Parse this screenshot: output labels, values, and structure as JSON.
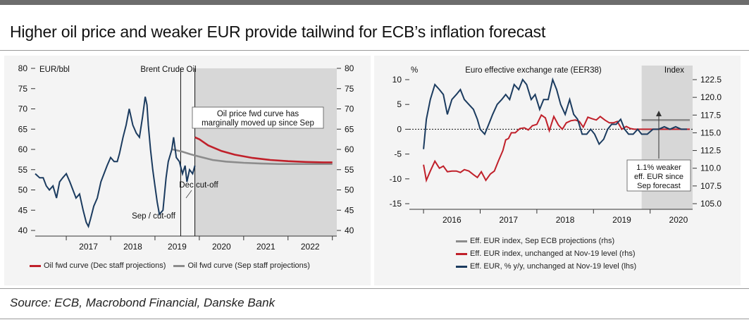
{
  "title": "Higher oil price and weaker EUR provide tailwind for ECB’s inflation forecast",
  "source": "Source: ECB, Macrobond Financial, Danske Bank",
  "colors": {
    "navy": "#1b3b5f",
    "red": "#c0202a",
    "gray": "#8c8c8c",
    "shade": "#d7d7d7"
  },
  "chart_data": [
    {
      "type": "line",
      "title": "Brent Crude Oil",
      "ylabel": "EUR/bbl",
      "ylim": [
        40,
        80
      ],
      "yticks": [
        "40",
        "45",
        "50",
        "55",
        "60",
        "65",
        "70",
        "75",
        "80"
      ],
      "xlim": [
        2016.3,
        2023.1
      ],
      "years": [
        "2017",
        "2018",
        "2019",
        "2020",
        "2021",
        "2022"
      ],
      "shaded_from": 2019.9,
      "annotations": {
        "sep": "Sep / cut-off",
        "dec": "Dec cut-off",
        "box_line1": "Oil price fwd curve has",
        "box_line2": "marginally moved up since Sep"
      },
      "series": [
        {
          "name": "Brent Crude Oil (EUR/bbl)",
          "x": [
            2016.3,
            2016.4,
            2016.48,
            2016.55,
            2016.62,
            2016.7,
            2016.78,
            2016.85,
            2016.92,
            2017.0,
            2017.08,
            2017.15,
            2017.22,
            2017.3,
            2017.38,
            2017.45,
            2017.5,
            2017.55,
            2017.62,
            2017.7,
            2017.78,
            2017.85,
            2017.92,
            2018.0,
            2018.08,
            2018.15,
            2018.2,
            2018.28,
            2018.35,
            2018.42,
            2018.5,
            2018.58,
            2018.65,
            2018.72,
            2018.78,
            2018.82,
            2018.85,
            2018.9,
            2018.95,
            2019.0,
            2019.05,
            2019.1,
            2019.18,
            2019.25,
            2019.3,
            2019.38,
            2019.42,
            2019.48,
            2019.55,
            2019.62,
            2019.68,
            2019.72,
            2019.78,
            2019.85,
            2019.9
          ],
          "values": [
            54,
            53,
            53,
            51,
            50,
            51,
            48,
            52,
            53,
            54,
            52,
            50,
            48,
            49,
            45,
            42,
            41,
            43,
            46,
            48,
            52,
            54,
            56,
            58,
            57,
            57,
            59,
            63,
            66,
            70,
            66,
            64,
            63,
            68,
            73,
            71,
            66,
            60,
            55,
            51,
            47,
            44,
            45,
            53,
            57,
            60,
            63,
            58,
            57,
            54,
            56,
            52,
            55,
            54,
            56
          ]
        },
        {
          "name": "Oil fwd curve (Dec staff projections)",
          "x": [
            2019.9,
            2020.0,
            2020.2,
            2020.5,
            2020.8,
            2021.2,
            2021.6,
            2022.0,
            2022.4,
            2022.8,
            2023.0
          ],
          "values": [
            63,
            62.5,
            61,
            59.6,
            58.7,
            57.9,
            57.4,
            57.1,
            56.9,
            56.8,
            56.8
          ]
        },
        {
          "name": "Oil fwd curve (Sep staff projections)",
          "x": [
            2019.4,
            2019.6,
            2019.8,
            2020.0,
            2020.3,
            2020.6,
            2021.0,
            2021.4,
            2021.8,
            2022.2,
            2022.6,
            2023.0
          ],
          "values": [
            60,
            59.5,
            58.8,
            58.2,
            57.4,
            57,
            56.7,
            56.5,
            56.4,
            56.4,
            56.4,
            56.4
          ]
        }
      ],
      "legend": [
        "Oil fwd curve (Dec staff projections)",
        "Oil fwd curve (Sep staff projections)"
      ]
    },
    {
      "type": "line",
      "title": "Euro effective exchange rate (EER38)",
      "ylabel_left": "%",
      "ylabel_right": "Index",
      "ylim_left": [
        -15,
        10
      ],
      "ylim_right": [
        105,
        122.5
      ],
      "yticks_left": [
        "-15",
        "-10",
        "-5",
        "0",
        "5",
        "10"
      ],
      "yticks_right": [
        "105.0",
        "107.5",
        "110.0",
        "112.5",
        "115.0",
        "117.5",
        "120.0",
        "122.5"
      ],
      "xlim": [
        2015.75,
        2020.75
      ],
      "years": [
        "2016",
        "2017",
        "2018",
        "2019",
        "2020"
      ],
      "shaded_from": 2019.85,
      "annotations": {
        "box_line1": "1.1% weaker",
        "box_line2": "eff. EUR since",
        "box_line3": "Sep forecast"
      },
      "series": [
        {
          "name": "Eff. EUR, % y/y, unchanged at Nov-19 level (lhs)",
          "axis": "left",
          "x": [
            2016.0,
            2016.05,
            2016.12,
            2016.2,
            2016.28,
            2016.35,
            2016.42,
            2016.5,
            2016.58,
            2016.65,
            2016.72,
            2016.8,
            2016.88,
            2016.95,
            2017.0,
            2017.08,
            2017.15,
            2017.22,
            2017.3,
            2017.38,
            2017.45,
            2017.52,
            2017.6,
            2017.68,
            2017.75,
            2017.82,
            2017.9,
            2017.97,
            2018.05,
            2018.12,
            2018.2,
            2018.28,
            2018.35,
            2018.42,
            2018.5,
            2018.58,
            2018.65,
            2018.72,
            2018.8,
            2018.88,
            2018.95,
            2019.02,
            2019.1,
            2019.18,
            2019.25,
            2019.32,
            2019.4,
            2019.48,
            2019.55,
            2019.62,
            2019.7,
            2019.78,
            2019.85,
            2019.95,
            2020.05,
            2020.15,
            2020.25,
            2020.35,
            2020.45,
            2020.55,
            2020.65
          ],
          "values": [
            -4,
            2,
            6,
            9,
            8,
            7,
            3,
            6,
            7,
            8,
            6,
            5,
            4,
            2,
            0,
            -1,
            1,
            3,
            5,
            6,
            7,
            6,
            9,
            8,
            10,
            9,
            6,
            7,
            4,
            6,
            6,
            10,
            8,
            5,
            3,
            6,
            3,
            2,
            -1,
            -1,
            0,
            -1,
            -3,
            -2,
            0,
            1,
            1,
            2,
            0,
            -1,
            -1,
            0,
            -1,
            -1,
            0,
            0,
            0.5,
            0,
            0.5,
            0,
            0
          ]
        },
        {
          "name": "Eff. EUR index, unchanged at Nov-19 level (rhs)",
          "axis": "right",
          "x": [
            2016.0,
            2016.05,
            2016.12,
            2016.2,
            2016.28,
            2016.35,
            2016.42,
            2016.5,
            2016.58,
            2016.65,
            2016.72,
            2016.8,
            2016.88,
            2016.95,
            2017.02,
            2017.1,
            2017.18,
            2017.25,
            2017.32,
            2017.4,
            2017.45,
            2017.5,
            2017.55,
            2017.62,
            2017.7,
            2017.78,
            2017.85,
            2017.92,
            2018.0,
            2018.08,
            2018.15,
            2018.22,
            2018.3,
            2018.38,
            2018.45,
            2018.52,
            2018.6,
            2018.68,
            2018.75,
            2018.82,
            2018.9,
            2018.97,
            2019.05,
            2019.12,
            2019.2,
            2019.28,
            2019.35,
            2019.42,
            2019.5,
            2019.58,
            2019.65,
            2019.72,
            2019.8,
            2019.85,
            2020.0,
            2020.2,
            2020.4,
            2020.6,
            2020.7
          ],
          "values": [
            110.5,
            108.3,
            109.6,
            111,
            110,
            110.3,
            109.5,
            109.6,
            109.6,
            109.4,
            109.8,
            109.6,
            109.1,
            108.7,
            109.5,
            108.3,
            109.2,
            109.6,
            111,
            112.5,
            114,
            114.2,
            115,
            115,
            115.6,
            115.7,
            115.4,
            116,
            116.2,
            117.5,
            117.1,
            115.3,
            117.3,
            116.1,
            115.5,
            116.4,
            116.7,
            116.8,
            116.6,
            115.8,
            117.2,
            117,
            116.8,
            117.3,
            116.8,
            116.4,
            116.4,
            116.6,
            115.5,
            115.9,
            115.6,
            115.5,
            115.5,
            115.5,
            115.5,
            115.5,
            115.5,
            115.5,
            115.5
          ]
        },
        {
          "name": "Eff. EUR index, Sep ECB projections (rhs)",
          "axis": "right",
          "x": [
            2019.85,
            2020.7
          ],
          "values": [
            116.8,
            116.8
          ]
        }
      ],
      "legend": [
        "Eff. EUR index, Sep ECB projections (rhs)",
        "Eff. EUR index, unchanged at Nov-19 level (rhs)",
        "Eff. EUR, % y/y, unchanged at Nov-19 level (lhs)"
      ]
    }
  ]
}
